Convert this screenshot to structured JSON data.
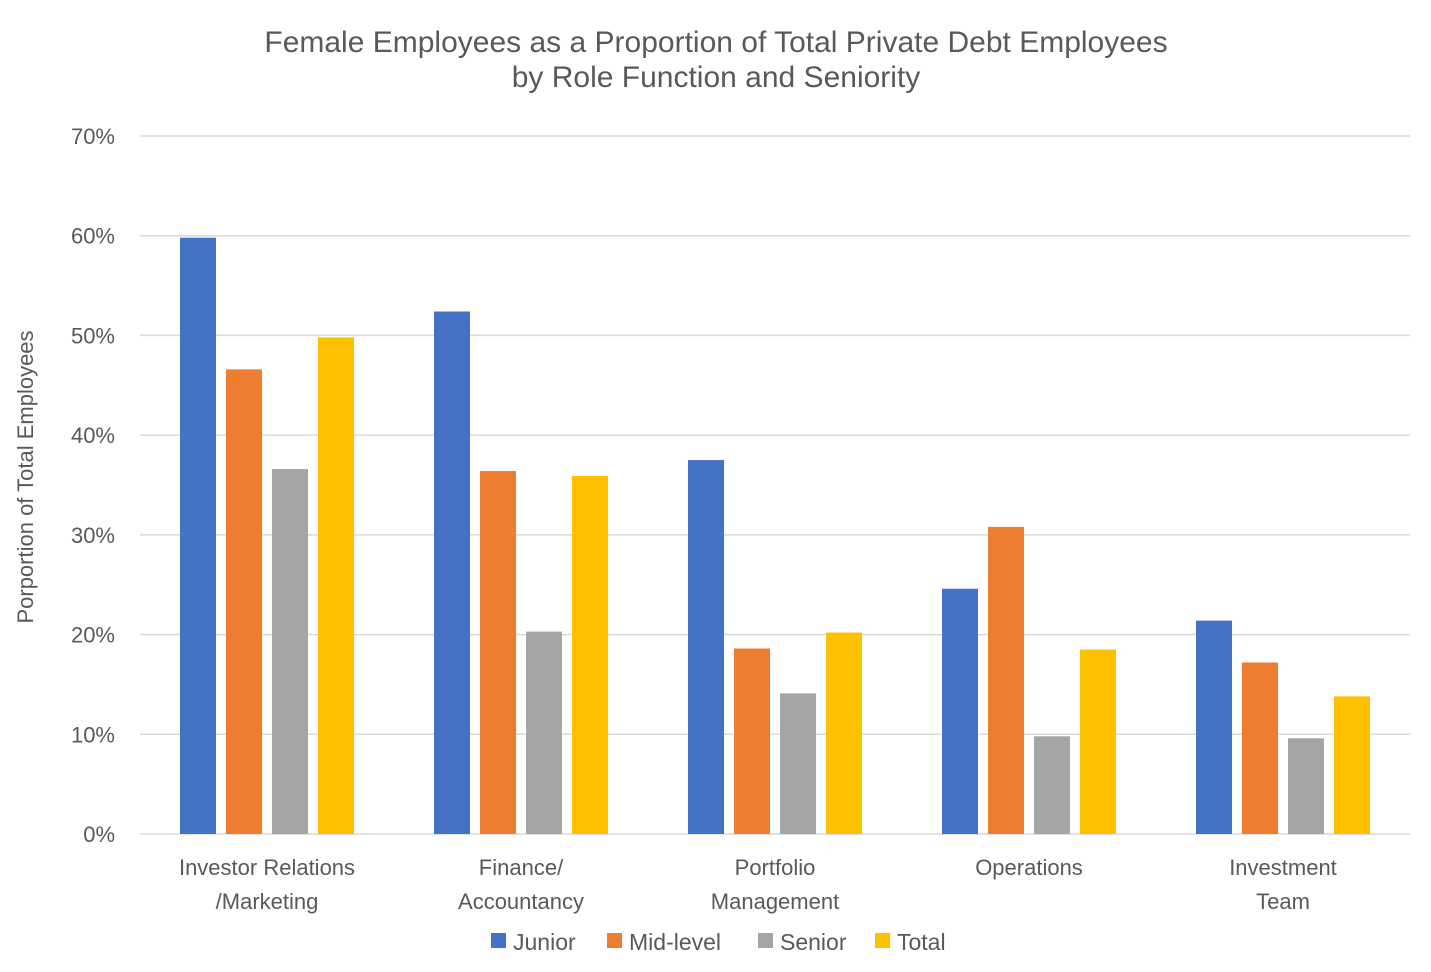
{
  "chart_data": {
    "type": "bar",
    "title": [
      "Female Employees as a Proportion of Total Private Debt Employees",
      "by Role Function and Seniority"
    ],
    "ylabel": "Porportion of Total Employees",
    "xlabel": "",
    "ylim": [
      0,
      70
    ],
    "yticks": [
      "0%",
      "10%",
      "20%",
      "30%",
      "40%",
      "50%",
      "60%",
      "70%"
    ],
    "grid": true,
    "legend_position": "bottom",
    "categories": [
      [
        "Investor Relations",
        "/Marketing"
      ],
      [
        "Finance/",
        "Accountancy"
      ],
      [
        "Portfolio",
        "Management"
      ],
      [
        "Operations"
      ],
      [
        "Investment",
        "Team"
      ]
    ],
    "series": [
      {
        "name": "Junior",
        "color": "#4472C4",
        "values": [
          59.8,
          52.4,
          37.5,
          24.6,
          21.4
        ]
      },
      {
        "name": "Mid-level",
        "color": "#ED7D31",
        "values": [
          46.6,
          36.4,
          18.6,
          30.8,
          17.2
        ]
      },
      {
        "name": "Senior",
        "color": "#A5A5A5",
        "values": [
          36.6,
          20.3,
          14.1,
          9.8,
          9.6
        ]
      },
      {
        "name": "Total",
        "color": "#FFC000",
        "values": [
          49.8,
          35.9,
          20.2,
          18.5,
          13.8
        ]
      }
    ]
  }
}
